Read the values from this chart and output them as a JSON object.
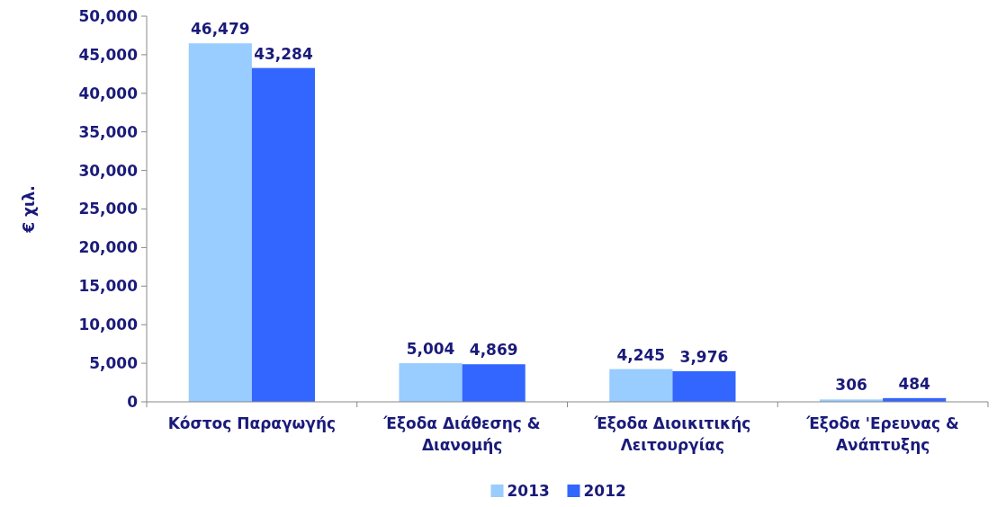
{
  "chart_data": {
    "type": "bar",
    "ylabel": "€ χιλ.",
    "categories": [
      "Κόστος Παραγωγής",
      "Έξοδα Διάθεσης & Διανομής",
      "Έξοδα Διοικιτικής Λειτουργίας",
      "Έξοδα 'Ερευνας & Ανάπτυξης"
    ],
    "series": [
      {
        "name": "2013",
        "color": "#99ccff",
        "values": [
          46479,
          5004,
          4245,
          306
        ],
        "value_labels": [
          "46,479",
          "5,004",
          "4,245",
          "306"
        ]
      },
      {
        "name": "2012",
        "color": "#3366ff",
        "values": [
          43284,
          4869,
          3976,
          484
        ],
        "value_labels": [
          "43,284",
          "4,869",
          "3,976",
          "484"
        ]
      }
    ],
    "ylim": [
      0,
      50000
    ],
    "yticks": [
      {
        "value": 0,
        "label": "0"
      },
      {
        "value": 5000,
        "label": "5,000"
      },
      {
        "value": 10000,
        "label": "10,000"
      },
      {
        "value": 15000,
        "label": "15,000"
      },
      {
        "value": 20000,
        "label": "20,000"
      },
      {
        "value": 25000,
        "label": "25,000"
      },
      {
        "value": 30000,
        "label": "30,000"
      },
      {
        "value": 35000,
        "label": "35,000"
      },
      {
        "value": 40000,
        "label": "40,000"
      },
      {
        "value": 45000,
        "label": "45,000"
      },
      {
        "value": 50000,
        "label": "50,000"
      }
    ],
    "legend": "bottom",
    "grid": false
  }
}
